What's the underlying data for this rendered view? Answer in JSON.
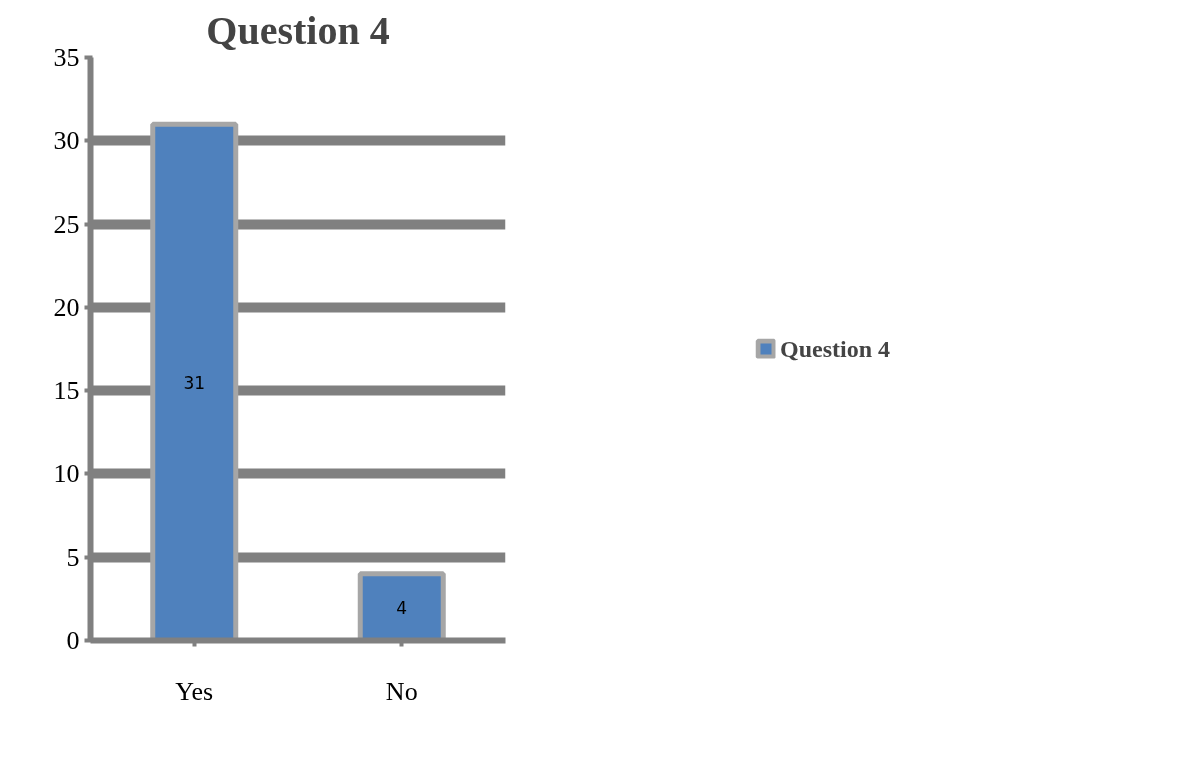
{
  "chart_data": {
    "type": "bar",
    "title": "Question 4",
    "categories": [
      "Yes",
      "No"
    ],
    "series": [
      {
        "name": "Question 4",
        "color": "#4f81bd",
        "values": [
          31,
          4
        ]
      }
    ],
    "ylim": [
      0,
      35
    ],
    "yticks": [
      0,
      5,
      10,
      15,
      20,
      25,
      30,
      35
    ],
    "grid": "y",
    "legend": "right",
    "data_labels": true
  }
}
